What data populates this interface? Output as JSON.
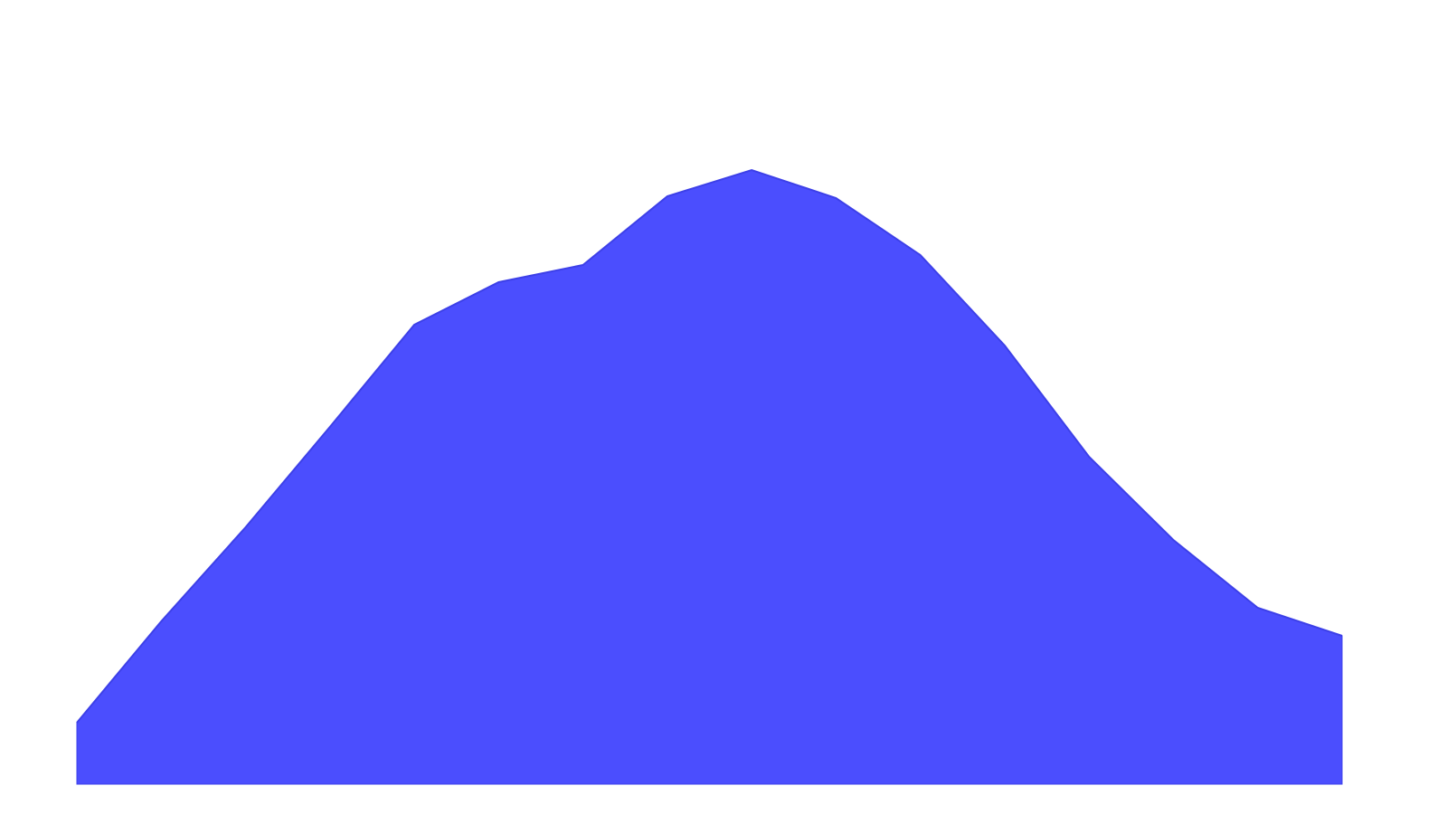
{
  "chart_data": {
    "type": "area",
    "categories": [
      null,
      null,
      null,
      null,
      null,
      null,
      null,
      null,
      null,
      null,
      null,
      null,
      null,
      null,
      null,
      null
    ],
    "values": [
      68,
      180,
      284,
      395,
      508,
      555,
      574,
      650,
      679,
      648,
      585,
      485,
      362,
      270,
      195,
      164
    ],
    "color": "#4b4efe",
    "line_color": "#3d40e8",
    "ylim": [
      0,
      700
    ]
  }
}
